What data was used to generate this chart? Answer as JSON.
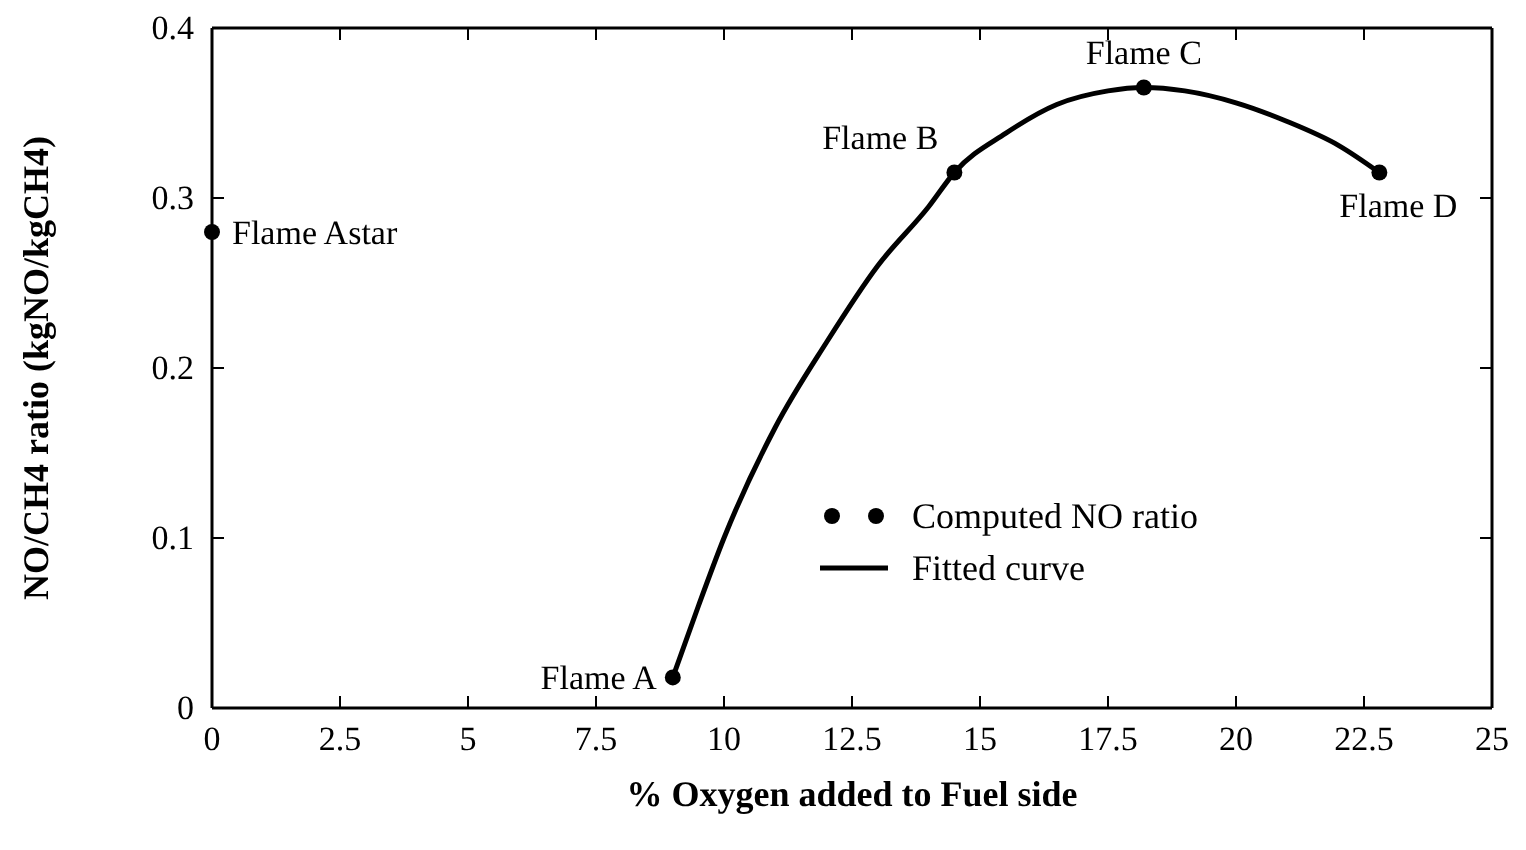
{
  "chart_data": {
    "type": "scatter",
    "xlabel": "% Oxygen added to Fuel side",
    "ylabel": "NO/CH4 ratio (kgNO/kgCH4)",
    "xlim": [
      0,
      25
    ],
    "xticks": [
      0,
      2.5,
      5,
      7.5,
      10,
      12.5,
      15,
      17.5,
      20,
      22.5,
      25
    ],
    "ylim": [
      0,
      0.4
    ],
    "yticks": [
      0,
      0.1,
      0.2,
      0.3,
      0.4
    ],
    "grid": false,
    "legend": "bottom right",
    "series": [
      {
        "name": "Computed NO ratio",
        "marker": "circle",
        "color": "#000000",
        "x": [
          0,
          9,
          14.5,
          18.2,
          22.8
        ],
        "values": [
          0.28,
          0.018,
          0.315,
          0.365,
          0.315
        ]
      },
      {
        "name": "Fitted curve",
        "type": "line",
        "color": "#000000",
        "line_style": "solid",
        "x": [
          9,
          9.5,
          10,
          11,
          12,
          13,
          14,
          14.5,
          15.5,
          16.5,
          17.5,
          18.2,
          19,
          20,
          21,
          22,
          22.8
        ],
        "values": [
          0.018,
          0.06,
          0.1,
          0.165,
          0.215,
          0.26,
          0.295,
          0.315,
          0.338,
          0.355,
          0.363,
          0.365,
          0.363,
          0.356,
          0.345,
          0.331,
          0.315
        ]
      }
    ],
    "annotations": [
      {
        "text": "Flame Astar",
        "x": 0,
        "y": 0.28
      },
      {
        "text": "Flame A",
        "x": 9,
        "y": 0.018
      },
      {
        "text": "Flame B",
        "x": 14.5,
        "y": 0.315
      },
      {
        "text": "Flame C",
        "x": 18.2,
        "y": 0.365
      },
      {
        "text": "Flame D",
        "x": 22.8,
        "y": 0.315
      }
    ]
  }
}
